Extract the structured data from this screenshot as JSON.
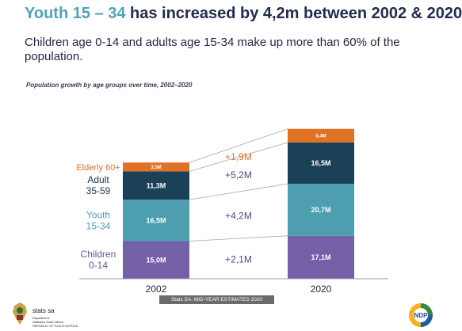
{
  "header": {
    "title_highlight": "Youth 15 – 34",
    "title_rest": "has increased by 4,2m between 2002 & 2020",
    "subtitle": "Children age 0-14 and adults age 15-34 make up more than 60% of the population."
  },
  "chart_caption": "Population growth by age groups over time, 2002–2020",
  "chart_data": {
    "type": "bar",
    "stacked": true,
    "title": "Population growth by age groups over time, 2002–2020",
    "categories": [
      "2002",
      "2020"
    ],
    "series": [
      {
        "name": "Children 0-14",
        "values": [
          15.0,
          17.1
        ],
        "labels": [
          "15,0M",
          "17,1M"
        ],
        "color": "#7360a6"
      },
      {
        "name": "Youth 15-34",
        "values": [
          16.5,
          20.7
        ],
        "labels": [
          "16,5M",
          "20,7M"
        ],
        "color": "#4d9fb0"
      },
      {
        "name": "Adult 35-59",
        "values": [
          11.3,
          16.5
        ],
        "labels": [
          "11,3M",
          "16,5M"
        ],
        "color": "#1b4158"
      },
      {
        "name": "Elderly 60+",
        "values": [
          3.5,
          5.4
        ],
        "labels": [
          "3,5M",
          "5,4M"
        ],
        "color": "#e07224"
      }
    ],
    "category_labels": [
      {
        "lines": [
          "Elderly 60+"
        ],
        "color": "#e07224"
      },
      {
        "lines": [
          "Adult",
          "35-59"
        ],
        "color": "#1b3552"
      },
      {
        "lines": [
          "Youth",
          "15-34"
        ],
        "color": "#4d9fb0"
      },
      {
        "lines": [
          "Children",
          "0-14"
        ],
        "color": "#6656a0"
      }
    ],
    "growth_labels": [
      "+2,1M",
      "+4,2M",
      "+5,2M",
      "+1,9M"
    ],
    "growth_colors": [
      "#4a4a88",
      "#4a4a88",
      "#4a4a88",
      "#e07224"
    ],
    "ylim": [
      0,
      60
    ]
  },
  "footer": {
    "source": "Stats SA: MID-YEAR ESTIMATES 2020",
    "org_name": "stats sa",
    "org_sub": [
      "Department:",
      "Statistics South Africa",
      "REPUBLIC OF SOUTH AFRICA"
    ],
    "ndp_logo_text": "NDP"
  }
}
